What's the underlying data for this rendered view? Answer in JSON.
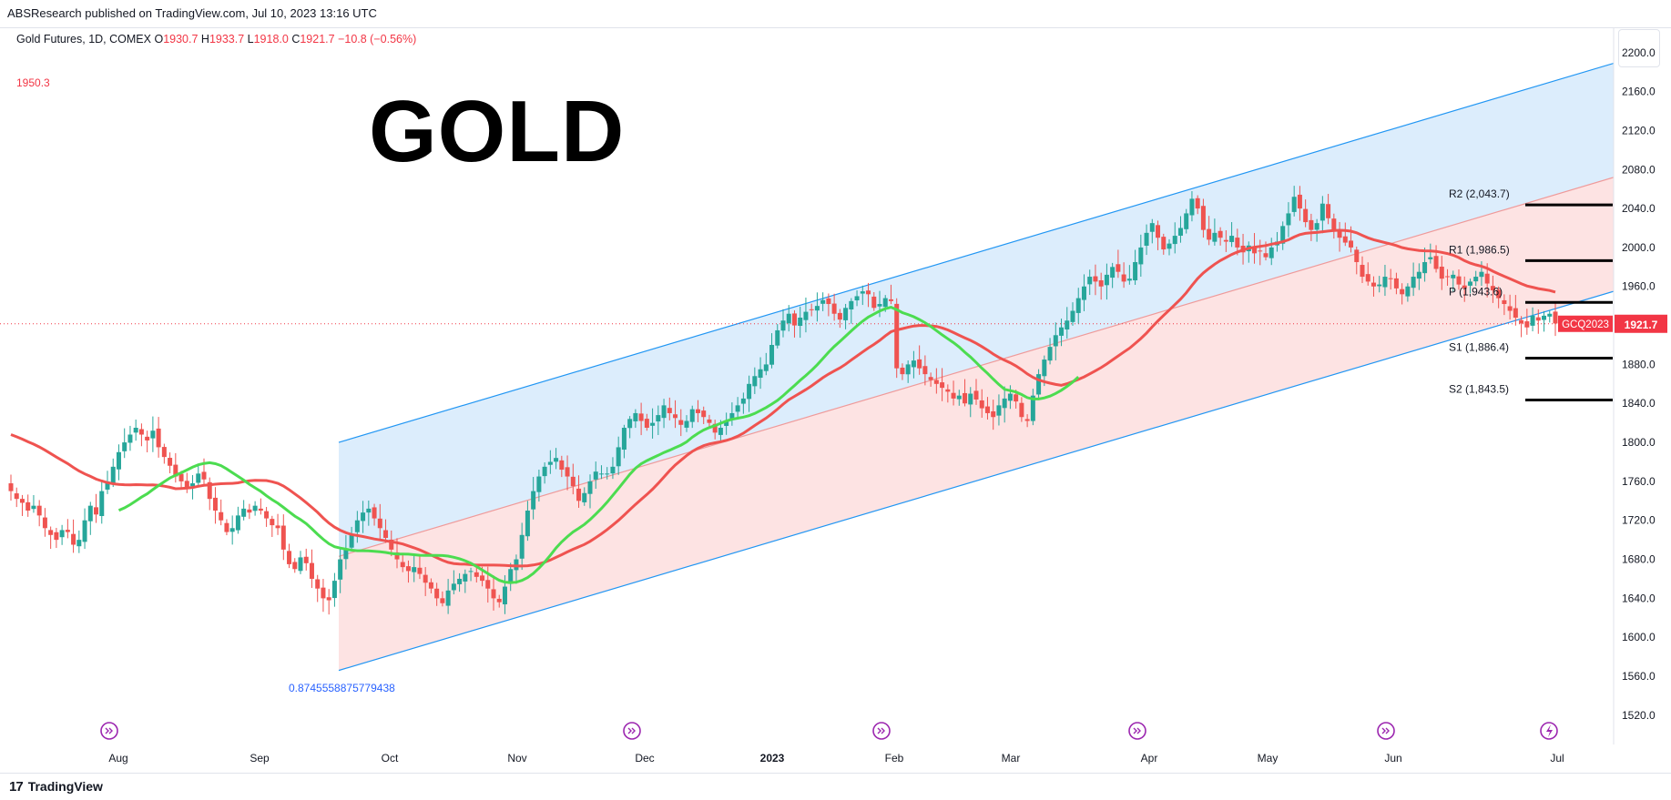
{
  "header": {
    "published_by": "ABSResearch published on TradingView.com, Jul 10, 2023 13:16 UTC"
  },
  "legend": {
    "symbol_text": "Gold Futures, 1D, COMEX",
    "open_label": "O",
    "open": "1930.7",
    "high_label": "H",
    "high": "1933.7",
    "low_label": "L",
    "low": "1918.0",
    "close_label": "C",
    "close": "1921.7",
    "change": "−10.8 (−0.56%)"
  },
  "left_level": "1950.3",
  "annotation": {
    "title": "GOLD"
  },
  "channel_label": "0.8745558875779438",
  "price_tag": {
    "symbol": "GCQ2023",
    "value": "1921.7"
  },
  "footer": {
    "brand": "TradingView",
    "logo": "17"
  },
  "colors": {
    "up": "#26a69a",
    "down": "#ef5350",
    "ma_fast": "#4cdc50",
    "ma_slow": "#ef5350",
    "channel_line": "#2196f3",
    "upper_fill": "#d6eafb",
    "lower_fill": "#fde0e0",
    "tag_bg": "#f23645",
    "event_icon": "#9c27b0"
  },
  "chart_data": {
    "type": "candlestick",
    "title": "Gold Futures, 1D, COMEX",
    "ylim": [
      1490,
      2225
    ],
    "y_ticks": [
      "2200.0",
      "2160.0",
      "2120.0",
      "2080.0",
      "2040.0",
      "2000.0",
      "1960.0",
      "1920.0",
      "1880.0",
      "1840.0",
      "1800.0",
      "1760.0",
      "1720.0",
      "1680.0",
      "1640.0",
      "1600.0",
      "1560.0",
      "1520.0"
    ],
    "x_ticks": [
      "Aug",
      "Sep",
      "Oct",
      "Nov",
      "Dec",
      "2023",
      "Feb",
      "Mar",
      "Apr",
      "May",
      "Jun",
      "Jul"
    ],
    "pivot_levels": [
      {
        "label": "R2 (2,043.7)",
        "value": 2043.7
      },
      {
        "label": "R1 (1,986.5)",
        "value": 1986.5
      },
      {
        "label": "P (1,943.6)",
        "value": 1943.6
      },
      {
        "label": "S1 (1,886.4)",
        "value": 1886.4
      },
      {
        "label": "S2 (1,843.5)",
        "value": 1843.5
      }
    ],
    "current_price": 1921.7,
    "closes": [
      1750,
      1742,
      1738,
      1730,
      1735,
      1725,
      1712,
      1705,
      1700,
      1710,
      1708,
      1695,
      1700,
      1720,
      1735,
      1726,
      1750,
      1760,
      1775,
      1790,
      1800,
      1808,
      1815,
      1808,
      1802,
      1812,
      1795,
      1785,
      1776,
      1765,
      1760,
      1752,
      1758,
      1768,
      1762,
      1742,
      1730,
      1720,
      1708,
      1712,
      1725,
      1732,
      1728,
      1735,
      1730,
      1722,
      1715,
      1712,
      1690,
      1675,
      1670,
      1682,
      1676,
      1660,
      1650,
      1640,
      1638,
      1658,
      1680,
      1690,
      1705,
      1720,
      1728,
      1732,
      1722,
      1712,
      1702,
      1690,
      1680,
      1672,
      1668,
      1672,
      1665,
      1656,
      1650,
      1640,
      1635,
      1648,
      1655,
      1660,
      1665,
      1668,
      1662,
      1658,
      1650,
      1640,
      1636,
      1652,
      1670,
      1680,
      1705,
      1730,
      1750,
      1765,
      1775,
      1780,
      1784,
      1772,
      1765,
      1755,
      1740,
      1748,
      1760,
      1770,
      1768,
      1768,
      1775,
      1795,
      1815,
      1824,
      1830,
      1822,
      1815,
      1820,
      1828,
      1838,
      1830,
      1825,
      1818,
      1822,
      1834,
      1830,
      1826,
      1820,
      1810,
      1815,
      1822,
      1830,
      1838,
      1845,
      1860,
      1868,
      1875,
      1880,
      1900,
      1915,
      1925,
      1932,
      1920,
      1928,
      1934,
      1936,
      1940,
      1946,
      1942,
      1932,
      1926,
      1938,
      1945,
      1950,
      1955,
      1952,
      1938,
      1942,
      1948,
      1945,
      1876,
      1870,
      1880,
      1884,
      1876,
      1870,
      1864,
      1860,
      1856,
      1852,
      1845,
      1848,
      1840,
      1850,
      1844,
      1835,
      1830,
      1826,
      1838,
      1845,
      1850,
      1842,
      1826,
      1822,
      1848,
      1870,
      1885,
      1898,
      1910,
      1918,
      1925,
      1935,
      1948,
      1960,
      1970,
      1965,
      1960,
      1972,
      1980,
      1975,
      1965,
      1968,
      1985,
      2000,
      2015,
      2025,
      2010,
      1998,
      2004,
      2012,
      2020,
      2035,
      2050,
      2040,
      2018,
      2008,
      2015,
      2010,
      2006,
      2012,
      2000,
      1995,
      2002,
      1994,
      1996,
      1990,
      2000,
      2006,
      2022,
      2035,
      2052,
      2040,
      2026,
      2018,
      2025,
      2045,
      2030,
      2018,
      2010,
      2005,
      2000,
      1985,
      1970,
      1965,
      1960,
      1962,
      1970,
      1968,
      1958,
      1952,
      1960,
      1970,
      1975,
      1985,
      1990,
      1978,
      1968,
      1970,
      1972,
      1962,
      1958,
      1965,
      1970,
      1975,
      1963,
      1956,
      1948,
      1942,
      1935,
      1928,
      1922,
      1918,
      1930,
      1925,
      1930,
      1932,
      1922
    ],
    "last_price_label": "GCQ2023 1921.7"
  }
}
